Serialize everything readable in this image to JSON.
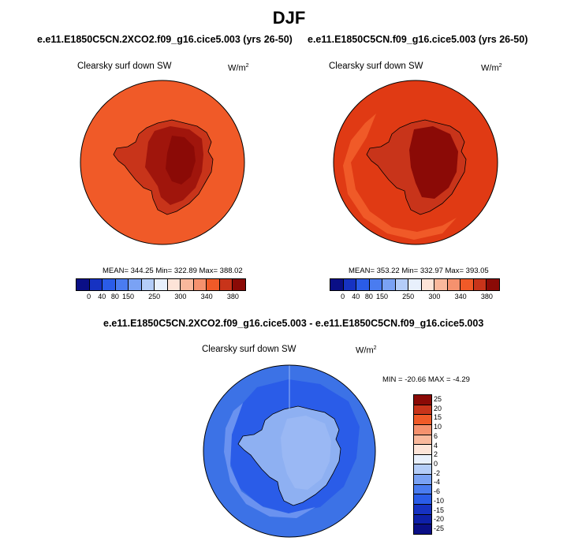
{
  "figure": {
    "title": "DJF",
    "colors": {
      "background": "#ffffff",
      "outline": "#000000"
    }
  },
  "panel_left": {
    "case": "e.e11.E1850C5CN.2XCO2.f09_g16.cice5.003 (yrs 26-50)",
    "variable": "Clearsky surf down SW",
    "units": "W/m",
    "units_sup": "2",
    "stats": "MEAN= 344.25   Min= 322.89   Max= 388.02",
    "colors": {
      "ocean": "#f05a28",
      "coast": "#c8341a",
      "plateau": "#a0150c",
      "interior": "#8b0a06"
    }
  },
  "panel_right": {
    "case": "e.e11.E1850C5CN.f09_g16.cice5.003 (yrs 26-50)",
    "variable": "Clearsky surf down SW",
    "units": "W/m",
    "units_sup": "2",
    "stats": "MEAN= 353.22   Min= 332.97   Max= 393.05",
    "colors": {
      "ocean": "#e03a14",
      "ice_edge": "#f05a28",
      "coast": "#c8341a",
      "interior": "#8b0a06"
    }
  },
  "abs_colorbar": {
    "colors": [
      "#0a0f86",
      "#1632c2",
      "#2a5ce8",
      "#4a7cf0",
      "#7aa2f4",
      "#b4cdf8",
      "#e8f0fc",
      "#fde4d8",
      "#f9b89c",
      "#f5916e",
      "#f05a28",
      "#c8341a",
      "#8b0a06"
    ],
    "ticks": [
      "0",
      "40",
      "80",
      "150",
      "250",
      "300",
      "340",
      "380"
    ]
  },
  "panel_diff": {
    "case": "e.e11.E1850C5CN.2XCO2.f09_g16.cice5.003 - e.e11.E1850C5CN.f09_g16.cice5.003",
    "variable": "Clearsky surf down SW",
    "units": "W/m",
    "units_sup": "2",
    "stats": "MIN = -20.66  MAX =  -4.29",
    "colors": {
      "ocean": "#3c72e6",
      "band": "#2a5ce8",
      "ice_edge": "#6a92f0",
      "land": "#8eb0f2",
      "inland": "#9ab8f4"
    }
  },
  "diff_colorbar": {
    "colors": [
      "#8b0a06",
      "#c8341a",
      "#f05a28",
      "#f5916e",
      "#f9b89c",
      "#fde4d8",
      "#e8f0fc",
      "#b4cdf8",
      "#7aa2f4",
      "#4a7cf0",
      "#2a5ce8",
      "#1632c2",
      "#0e20a8",
      "#0a0f86"
    ],
    "ticks": [
      "25",
      "20",
      "15",
      "10",
      "6",
      "4",
      "2",
      "0",
      "-2",
      "-4",
      "-6",
      "-10",
      "-15",
      "-20",
      "-25"
    ]
  }
}
